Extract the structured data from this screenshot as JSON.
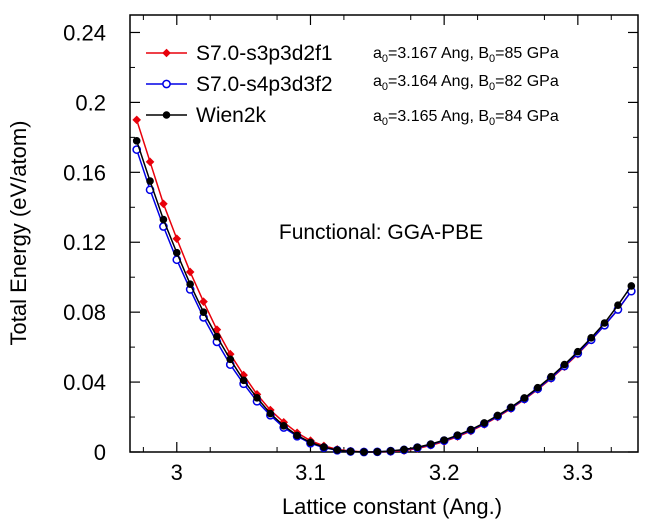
{
  "chart_data": {
    "type": "line",
    "xlabel": "Lattice constant (Ang.)",
    "ylabel": "Total Energy (eV/atom)",
    "xlim": [
      2.965,
      3.345
    ],
    "ylim": [
      0,
      0.25
    ],
    "x_ticks": [
      3,
      3.1,
      3.2,
      3.3
    ],
    "x_tick_labels": [
      "3",
      "3.1",
      "3.2",
      "3.3"
    ],
    "y_ticks": [
      0,
      0.04,
      0.08,
      0.12,
      0.16,
      0.2,
      0.24
    ],
    "y_tick_labels": [
      "0",
      "0.04",
      "0.08",
      "0.12",
      "0.16",
      "0.2",
      "0.24"
    ],
    "grid": false,
    "legend_position": "top-left",
    "annotation": "Functional: GGA-PBE",
    "x": [
      2.97,
      2.98,
      2.99,
      3.0,
      3.01,
      3.02,
      3.03,
      3.04,
      3.05,
      3.06,
      3.07,
      3.08,
      3.09,
      3.1,
      3.11,
      3.12,
      3.13,
      3.14,
      3.15,
      3.16,
      3.17,
      3.18,
      3.19,
      3.2,
      3.21,
      3.22,
      3.23,
      3.24,
      3.25,
      3.26,
      3.27,
      3.28,
      3.29,
      3.3,
      3.31,
      3.32,
      3.33,
      3.34
    ],
    "series": [
      {
        "name": "S7.0-s3p3d2f1",
        "param_base": "a",
        "param_sub": "0",
        "param_mid": "=3.167 Ang, B",
        "param_sub2": "0",
        "param_end": "=85 GPa",
        "color": "#e8000b",
        "marker": "diamond-filled",
        "values": [
          0.19,
          0.166,
          0.142,
          0.122,
          0.103,
          0.086,
          0.07,
          0.056,
          0.044,
          0.033,
          0.024,
          0.017,
          0.011,
          0.0065,
          0.0035,
          0.0015,
          0.0005,
          0.0001,
          0.0,
          0.0002,
          0.0008,
          0.002,
          0.0038,
          0.006,
          0.0088,
          0.012,
          0.0158,
          0.02,
          0.0248,
          0.03,
          0.0358,
          0.042,
          0.0488,
          0.056,
          0.064,
          0.0725,
          0.0815,
          0.092
        ]
      },
      {
        "name": "S7.0-s4p3d3f2",
        "param_base": "a",
        "param_sub": "0",
        "param_mid": "=3.164 Ang, B",
        "param_sub2": "0",
        "param_end": "=82 GPa",
        "color": "#0000e6",
        "marker": "circle-open",
        "values": [
          0.173,
          0.15,
          0.129,
          0.11,
          0.093,
          0.077,
          0.063,
          0.05,
          0.039,
          0.029,
          0.021,
          0.014,
          0.009,
          0.005,
          0.0025,
          0.001,
          0.0003,
          0.0,
          0.0001,
          0.0005,
          0.0012,
          0.0025,
          0.0042,
          0.0065,
          0.0093,
          0.0125,
          0.0162,
          0.0205,
          0.0252,
          0.0304,
          0.0362,
          0.0424,
          0.0492,
          0.0565,
          0.0642,
          0.0725,
          0.0815,
          0.092
        ]
      },
      {
        "name": "Wien2k",
        "param_base": "a",
        "param_sub": "0",
        "param_mid": "=3.165 Ang, B",
        "param_sub2": "0",
        "param_end": "=84 GPa",
        "color": "#000000",
        "marker": "circle-filled",
        "values": [
          0.178,
          0.155,
          0.133,
          0.114,
          0.096,
          0.08,
          0.066,
          0.053,
          0.041,
          0.031,
          0.022,
          0.015,
          0.0095,
          0.0055,
          0.0028,
          0.0011,
          0.0003,
          0.0,
          0.0001,
          0.0006,
          0.0014,
          0.0027,
          0.0045,
          0.0068,
          0.0096,
          0.0128,
          0.0166,
          0.0209,
          0.0256,
          0.0309,
          0.0368,
          0.0431,
          0.05,
          0.0574,
          0.0653,
          0.0738,
          0.084,
          0.095
        ]
      }
    ]
  }
}
